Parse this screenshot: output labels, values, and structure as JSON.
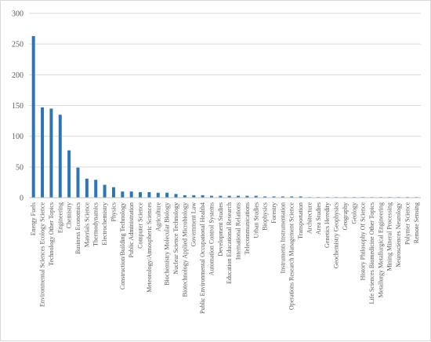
{
  "chart_data": {
    "type": "bar",
    "title": "",
    "xlabel": "",
    "ylabel": "",
    "ylim": [
      0,
      300
    ],
    "yticks": [
      "0",
      "50",
      "100",
      "150",
      "200",
      "250",
      "300"
    ],
    "grid": "horizontal",
    "bar_color": "#2E75B6",
    "categories": [
      "Energy Fuels",
      "Environmental Sciences Ecology Science",
      "Technology Other Topics",
      "Engineering",
      "Chemistry",
      "Business Economics",
      "Materials Science",
      "Thermodynamics",
      "Electrochemistry",
      "Physics",
      "Construction/Building Technology",
      "Public Administration",
      "Computer Science",
      "Meteorology/Atmospheric Sciences",
      "Agriculture",
      "Biochemistry Molecular Biology",
      "Nuclear Science Technology",
      "Biotechnology Applied Microbiology",
      "Government Law",
      "Public Environmental Occupational Health4",
      "Automation Control Systems",
      "Development Studies",
      "Education Educational Research",
      "International Relations",
      "Telecommunications",
      "Urban Studies",
      "Biophysics",
      "Forestry",
      "Instruments Instrumentation",
      "Operations Research Management Science",
      "Transportation",
      "Architecture",
      "Area Studies",
      "Genetics Heredity",
      "Geochemistry Geophysics",
      "Geography",
      "Geology",
      "History Philosophy Of Science",
      "Life Sciences Biomedicine Other Topics",
      "Metallurgy Metallurgical Engineering",
      "Mining Mineral Processing",
      "Neurosciences Neurology",
      "Polymer Science",
      "Remote Sensing"
    ],
    "values": [
      263,
      147,
      145,
      135,
      77,
      49,
      31,
      29,
      21,
      17,
      10,
      10,
      9,
      9,
      8,
      8,
      6,
      4,
      4,
      4,
      3,
      3,
      3,
      3,
      3,
      3,
      2,
      2,
      2,
      2,
      2,
      1,
      1,
      1,
      1,
      1,
      1,
      1,
      1,
      1,
      1,
      1,
      1,
      1
    ]
  }
}
